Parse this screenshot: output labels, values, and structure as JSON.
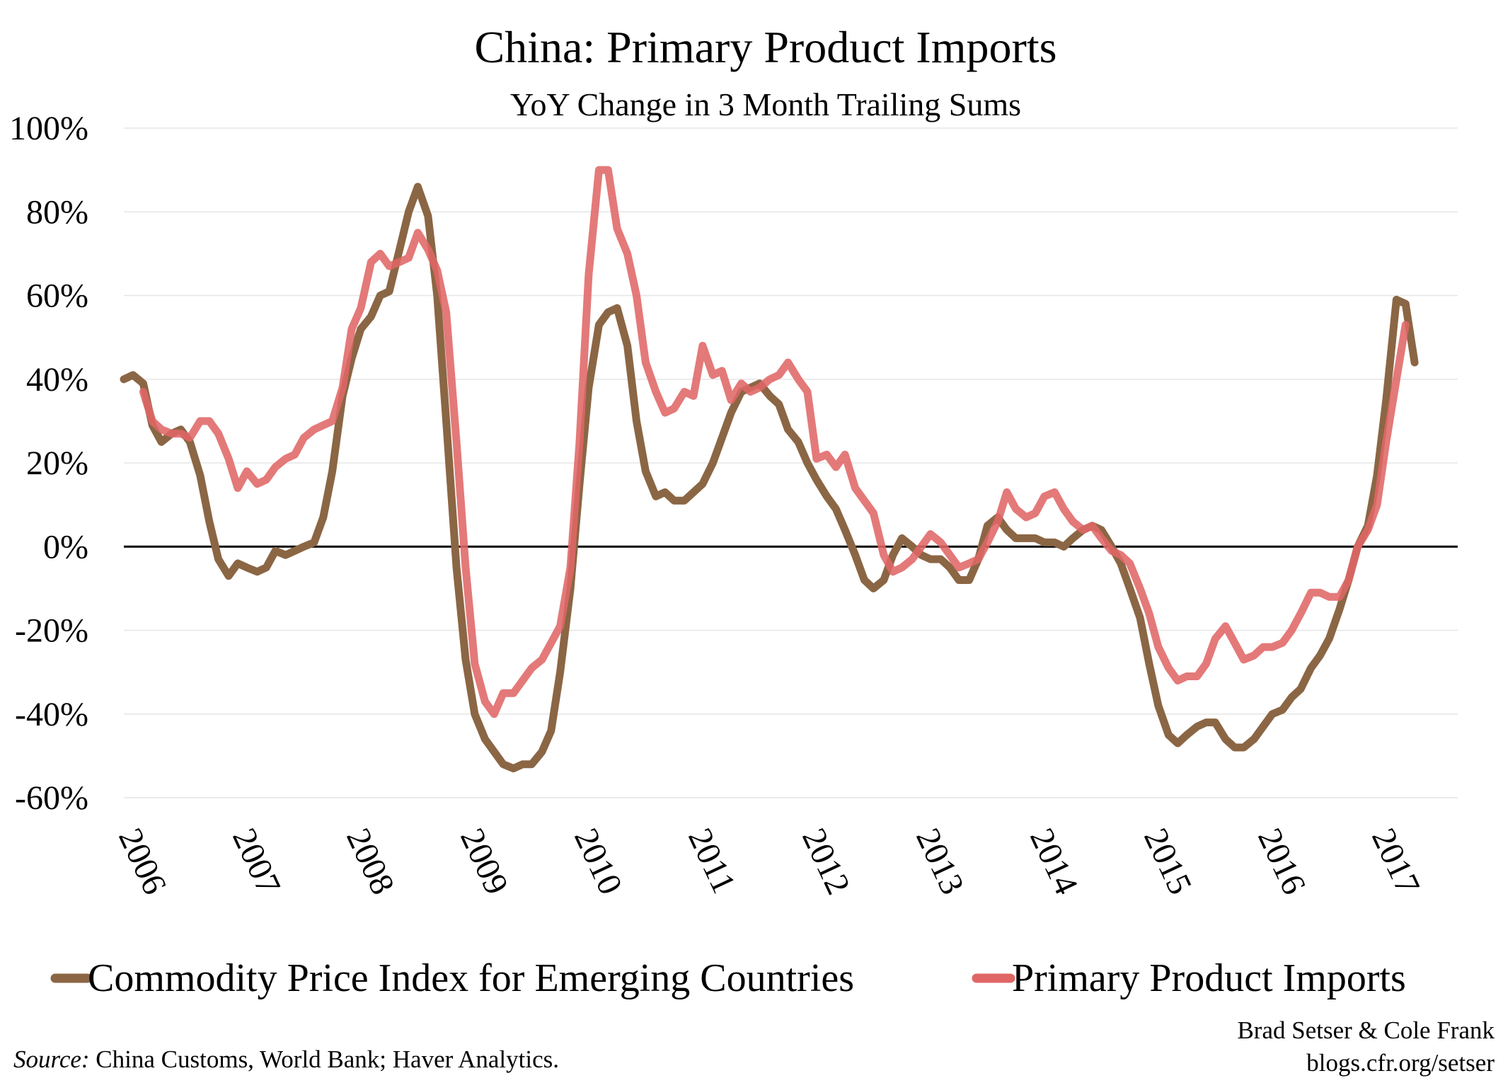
{
  "chart_data": {
    "type": "line",
    "title": "China: Primary Product Imports",
    "subtitle": "YoY Change in 3 Month Trailing Sums",
    "xlabel": "",
    "ylabel": "",
    "ylim": [
      -60,
      100
    ],
    "y_ticks": [
      "100%",
      "80%",
      "60%",
      "40%",
      "20%",
      "0%",
      "-20%",
      "-40%",
      "-60%"
    ],
    "y_tick_values": [
      100,
      80,
      60,
      40,
      20,
      0,
      -20,
      -40,
      -60
    ],
    "x_ticks": [
      "2006",
      "2007",
      "2008",
      "2009",
      "2010",
      "2011",
      "2012",
      "2013",
      "2014",
      "2015",
      "2016",
      "2017"
    ],
    "x_tick_values": [
      2006,
      2007,
      2008,
      2009,
      2010,
      2011,
      2012,
      2013,
      2014,
      2015,
      2016,
      2017
    ],
    "xlim": [
      2006,
      2017.5
    ],
    "grid": true,
    "legend_position": "bottom",
    "series": [
      {
        "name": "Commodity Price Index for Emerging Countries",
        "color": "#8b6644",
        "points": [
          [
            2006.0,
            40
          ],
          [
            2006.08,
            41
          ],
          [
            2006.17,
            39
          ],
          [
            2006.25,
            29
          ],
          [
            2006.33,
            25
          ],
          [
            2006.42,
            27
          ],
          [
            2006.5,
            28
          ],
          [
            2006.58,
            25
          ],
          [
            2006.67,
            17
          ],
          [
            2006.75,
            6
          ],
          [
            2006.83,
            -3
          ],
          [
            2006.92,
            -7
          ],
          [
            2007.0,
            -4
          ],
          [
            2007.08,
            -5
          ],
          [
            2007.17,
            -6
          ],
          [
            2007.25,
            -5
          ],
          [
            2007.33,
            -1
          ],
          [
            2007.42,
            -2
          ],
          [
            2007.5,
            -1
          ],
          [
            2007.58,
            0
          ],
          [
            2007.67,
            1
          ],
          [
            2007.75,
            7
          ],
          [
            2007.83,
            18
          ],
          [
            2007.92,
            36
          ],
          [
            2008.0,
            45
          ],
          [
            2008.08,
            52
          ],
          [
            2008.17,
            55
          ],
          [
            2008.25,
            60
          ],
          [
            2008.33,
            61
          ],
          [
            2008.42,
            71
          ],
          [
            2008.5,
            80
          ],
          [
            2008.58,
            86
          ],
          [
            2008.67,
            79
          ],
          [
            2008.75,
            60
          ],
          [
            2008.83,
            30
          ],
          [
            2008.92,
            -5
          ],
          [
            2009.0,
            -27
          ],
          [
            2009.08,
            -40
          ],
          [
            2009.17,
            -46
          ],
          [
            2009.25,
            -49
          ],
          [
            2009.33,
            -52
          ],
          [
            2009.42,
            -53
          ],
          [
            2009.5,
            -52
          ],
          [
            2009.58,
            -52
          ],
          [
            2009.67,
            -49
          ],
          [
            2009.75,
            -44
          ],
          [
            2009.83,
            -30
          ],
          [
            2009.92,
            -10
          ],
          [
            2010.0,
            15
          ],
          [
            2010.08,
            38
          ],
          [
            2010.17,
            53
          ],
          [
            2010.25,
            56
          ],
          [
            2010.33,
            57
          ],
          [
            2010.42,
            48
          ],
          [
            2010.5,
            30
          ],
          [
            2010.58,
            18
          ],
          [
            2010.67,
            12
          ],
          [
            2010.75,
            13
          ],
          [
            2010.83,
            11
          ],
          [
            2010.92,
            11
          ],
          [
            2011.0,
            13
          ],
          [
            2011.08,
            15
          ],
          [
            2011.17,
            20
          ],
          [
            2011.25,
            26
          ],
          [
            2011.33,
            32
          ],
          [
            2011.42,
            37
          ],
          [
            2011.5,
            38
          ],
          [
            2011.58,
            39
          ],
          [
            2011.67,
            36
          ],
          [
            2011.75,
            34
          ],
          [
            2011.83,
            28
          ],
          [
            2011.92,
            25
          ],
          [
            2012.0,
            20
          ],
          [
            2012.08,
            16
          ],
          [
            2012.17,
            12
          ],
          [
            2012.25,
            9
          ],
          [
            2012.33,
            4
          ],
          [
            2012.42,
            -2
          ],
          [
            2012.5,
            -8
          ],
          [
            2012.58,
            -10
          ],
          [
            2012.67,
            -8
          ],
          [
            2012.75,
            -2
          ],
          [
            2012.83,
            2
          ],
          [
            2012.92,
            0
          ],
          [
            2013.0,
            -2
          ],
          [
            2013.08,
            -3
          ],
          [
            2013.17,
            -3
          ],
          [
            2013.25,
            -5
          ],
          [
            2013.33,
            -8
          ],
          [
            2013.42,
            -8
          ],
          [
            2013.5,
            -3
          ],
          [
            2013.58,
            5
          ],
          [
            2013.67,
            7
          ],
          [
            2013.75,
            4
          ],
          [
            2013.83,
            2
          ],
          [
            2013.92,
            2
          ],
          [
            2014.0,
            2
          ],
          [
            2014.08,
            1
          ],
          [
            2014.17,
            1
          ],
          [
            2014.25,
            0
          ],
          [
            2014.33,
            2
          ],
          [
            2014.42,
            4
          ],
          [
            2014.5,
            5
          ],
          [
            2014.58,
            4
          ],
          [
            2014.67,
            0
          ],
          [
            2014.75,
            -4
          ],
          [
            2014.83,
            -10
          ],
          [
            2014.92,
            -17
          ],
          [
            2015.0,
            -28
          ],
          [
            2015.08,
            -38
          ],
          [
            2015.17,
            -45
          ],
          [
            2015.25,
            -47
          ],
          [
            2015.33,
            -45
          ],
          [
            2015.42,
            -43
          ],
          [
            2015.5,
            -42
          ],
          [
            2015.58,
            -42
          ],
          [
            2015.67,
            -46
          ],
          [
            2015.75,
            -48
          ],
          [
            2015.83,
            -48
          ],
          [
            2015.92,
            -46
          ],
          [
            2016.0,
            -43
          ],
          [
            2016.08,
            -40
          ],
          [
            2016.17,
            -39
          ],
          [
            2016.25,
            -36
          ],
          [
            2016.33,
            -34
          ],
          [
            2016.42,
            -29
          ],
          [
            2016.5,
            -26
          ],
          [
            2016.58,
            -22
          ],
          [
            2016.67,
            -15
          ],
          [
            2016.75,
            -8
          ],
          [
            2016.83,
            0
          ],
          [
            2016.92,
            5
          ],
          [
            2017.0,
            17
          ],
          [
            2017.08,
            35
          ],
          [
            2017.17,
            59
          ],
          [
            2017.25,
            58
          ],
          [
            2017.33,
            44
          ]
        ]
      },
      {
        "name": "Primary Product Imports",
        "color": "#e06666",
        "points": [
          [
            2006.17,
            37
          ],
          [
            2006.25,
            30
          ],
          [
            2006.33,
            28
          ],
          [
            2006.42,
            27
          ],
          [
            2006.5,
            27
          ],
          [
            2006.58,
            26
          ],
          [
            2006.67,
            30
          ],
          [
            2006.75,
            30
          ],
          [
            2006.83,
            27
          ],
          [
            2006.92,
            21
          ],
          [
            2007.0,
            14
          ],
          [
            2007.08,
            18
          ],
          [
            2007.17,
            15
          ],
          [
            2007.25,
            16
          ],
          [
            2007.33,
            19
          ],
          [
            2007.42,
            21
          ],
          [
            2007.5,
            22
          ],
          [
            2007.58,
            26
          ],
          [
            2007.67,
            28
          ],
          [
            2007.75,
            29
          ],
          [
            2007.83,
            30
          ],
          [
            2007.92,
            38
          ],
          [
            2008.0,
            52
          ],
          [
            2008.08,
            57
          ],
          [
            2008.17,
            68
          ],
          [
            2008.25,
            70
          ],
          [
            2008.33,
            67
          ],
          [
            2008.42,
            68
          ],
          [
            2008.5,
            69
          ],
          [
            2008.58,
            75
          ],
          [
            2008.67,
            71
          ],
          [
            2008.75,
            66
          ],
          [
            2008.83,
            56
          ],
          [
            2008.92,
            25
          ],
          [
            2009.0,
            -5
          ],
          [
            2009.08,
            -28
          ],
          [
            2009.17,
            -37
          ],
          [
            2009.25,
            -40
          ],
          [
            2009.33,
            -35
          ],
          [
            2009.42,
            -35
          ],
          [
            2009.5,
            -32
          ],
          [
            2009.58,
            -29
          ],
          [
            2009.67,
            -27
          ],
          [
            2009.75,
            -23
          ],
          [
            2009.83,
            -19
          ],
          [
            2009.92,
            -5
          ],
          [
            2010.0,
            25
          ],
          [
            2010.08,
            65
          ],
          [
            2010.17,
            90
          ],
          [
            2010.25,
            90
          ],
          [
            2010.33,
            76
          ],
          [
            2010.42,
            70
          ],
          [
            2010.5,
            60
          ],
          [
            2010.58,
            44
          ],
          [
            2010.67,
            37
          ],
          [
            2010.75,
            32
          ],
          [
            2010.83,
            33
          ],
          [
            2010.92,
            37
          ],
          [
            2011.0,
            36
          ],
          [
            2011.08,
            48
          ],
          [
            2011.17,
            41
          ],
          [
            2011.25,
            42
          ],
          [
            2011.33,
            35
          ],
          [
            2011.42,
            39
          ],
          [
            2011.5,
            37
          ],
          [
            2011.58,
            38
          ],
          [
            2011.67,
            40
          ],
          [
            2011.75,
            41
          ],
          [
            2011.83,
            44
          ],
          [
            2011.92,
            40
          ],
          [
            2012.0,
            37
          ],
          [
            2012.08,
            21
          ],
          [
            2012.17,
            22
          ],
          [
            2012.25,
            19
          ],
          [
            2012.33,
            22
          ],
          [
            2012.42,
            14
          ],
          [
            2012.5,
            11
          ],
          [
            2012.58,
            8
          ],
          [
            2012.67,
            -2
          ],
          [
            2012.75,
            -6
          ],
          [
            2012.83,
            -5
          ],
          [
            2012.92,
            -3
          ],
          [
            2013.0,
            0
          ],
          [
            2013.08,
            3
          ],
          [
            2013.17,
            1
          ],
          [
            2013.25,
            -2
          ],
          [
            2013.33,
            -5
          ],
          [
            2013.42,
            -4
          ],
          [
            2013.5,
            -3
          ],
          [
            2013.58,
            1
          ],
          [
            2013.67,
            6
          ],
          [
            2013.75,
            13
          ],
          [
            2013.83,
            9
          ],
          [
            2013.92,
            7
          ],
          [
            2014.0,
            8
          ],
          [
            2014.08,
            12
          ],
          [
            2014.17,
            13
          ],
          [
            2014.25,
            9
          ],
          [
            2014.33,
            6
          ],
          [
            2014.42,
            4
          ],
          [
            2014.5,
            5
          ],
          [
            2014.58,
            2
          ],
          [
            2014.67,
            -1
          ],
          [
            2014.75,
            -2
          ],
          [
            2014.83,
            -4
          ],
          [
            2014.92,
            -10
          ],
          [
            2015.0,
            -16
          ],
          [
            2015.08,
            -24
          ],
          [
            2015.17,
            -29
          ],
          [
            2015.25,
            -32
          ],
          [
            2015.33,
            -31
          ],
          [
            2015.42,
            -31
          ],
          [
            2015.5,
            -28
          ],
          [
            2015.58,
            -22
          ],
          [
            2015.67,
            -19
          ],
          [
            2015.75,
            -23
          ],
          [
            2015.83,
            -27
          ],
          [
            2015.92,
            -26
          ],
          [
            2016.0,
            -24
          ],
          [
            2016.08,
            -24
          ],
          [
            2016.17,
            -23
          ],
          [
            2016.25,
            -20
          ],
          [
            2016.33,
            -16
          ],
          [
            2016.42,
            -11
          ],
          [
            2016.5,
            -11
          ],
          [
            2016.58,
            -12
          ],
          [
            2016.67,
            -12
          ],
          [
            2016.75,
            -8
          ],
          [
            2016.83,
            0
          ],
          [
            2016.92,
            4
          ],
          [
            2017.0,
            10
          ],
          [
            2017.08,
            25
          ],
          [
            2017.17,
            40
          ],
          [
            2017.25,
            53
          ]
        ]
      }
    ]
  },
  "footer": {
    "source_label": "Source:",
    "source_text": " China Customs, World Bank; Haver Analytics.",
    "credit_line1": "Brad Setser & Cole Frank",
    "credit_line2": "blogs.cfr.org/setser"
  }
}
